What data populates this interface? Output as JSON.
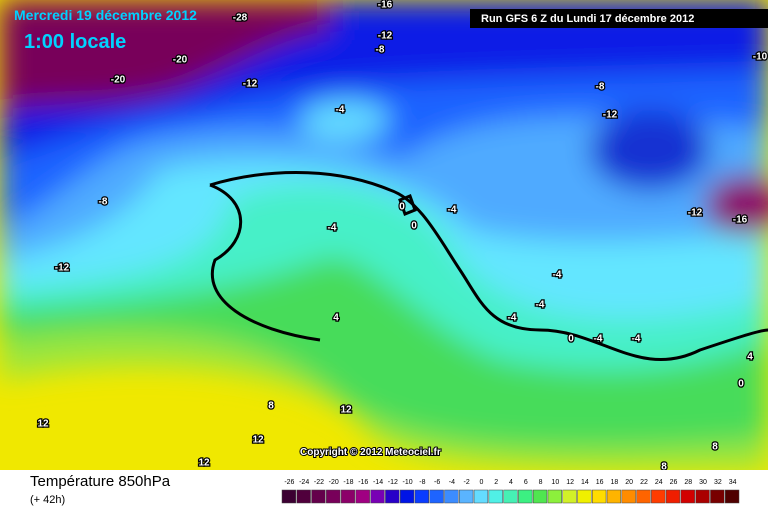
{
  "header": {
    "date": "Mercredi 19 décembre 2012",
    "time": "1:00 locale",
    "run": "Run GFS 6 Z du Lundi 17 décembre 2012"
  },
  "copyright": "Copyright © 2012 Meteociel.fr",
  "footer": {
    "title": "Température 850hPa",
    "lead": "(+ 42h)"
  },
  "legend": {
    "values": [
      -26,
      -24,
      -22,
      -20,
      -18,
      -16,
      -14,
      -12,
      -10,
      -8,
      -6,
      -4,
      -2,
      0,
      2,
      4,
      6,
      8,
      10,
      12,
      14,
      16,
      18,
      20,
      22,
      24,
      26,
      28,
      30,
      32,
      34
    ],
    "colors": [
      "#3c0032",
      "#50003c",
      "#64004b",
      "#78005a",
      "#8c0069",
      "#a00082",
      "#7800b4",
      "#2800c8",
      "#0014e6",
      "#0a3cff",
      "#1e64ff",
      "#3c8cff",
      "#5ab4ff",
      "#64dcff",
      "#50f0e6",
      "#46f0b4",
      "#3cf082",
      "#50e650",
      "#8cf03c",
      "#d2f028",
      "#f0f000",
      "#ffdc00",
      "#ffb400",
      "#ff8c00",
      "#ff6400",
      "#ff3c00",
      "#f01e00",
      "#d20000",
      "#aa0000",
      "#780000",
      "#500000"
    ]
  },
  "map_labels": [
    "-28",
    "-16",
    "-20",
    "-20",
    "-12",
    "-12",
    "-8",
    "-4",
    "-8",
    "-12",
    "-10",
    "-8",
    "-12",
    "-12",
    "-16",
    "0",
    "-4",
    "0",
    "-4",
    "4",
    "-4",
    "-4",
    "-4",
    "0",
    "-4",
    "-4",
    "4",
    "0",
    "8",
    "12",
    "12",
    "12",
    "12",
    "8",
    "8"
  ]
}
